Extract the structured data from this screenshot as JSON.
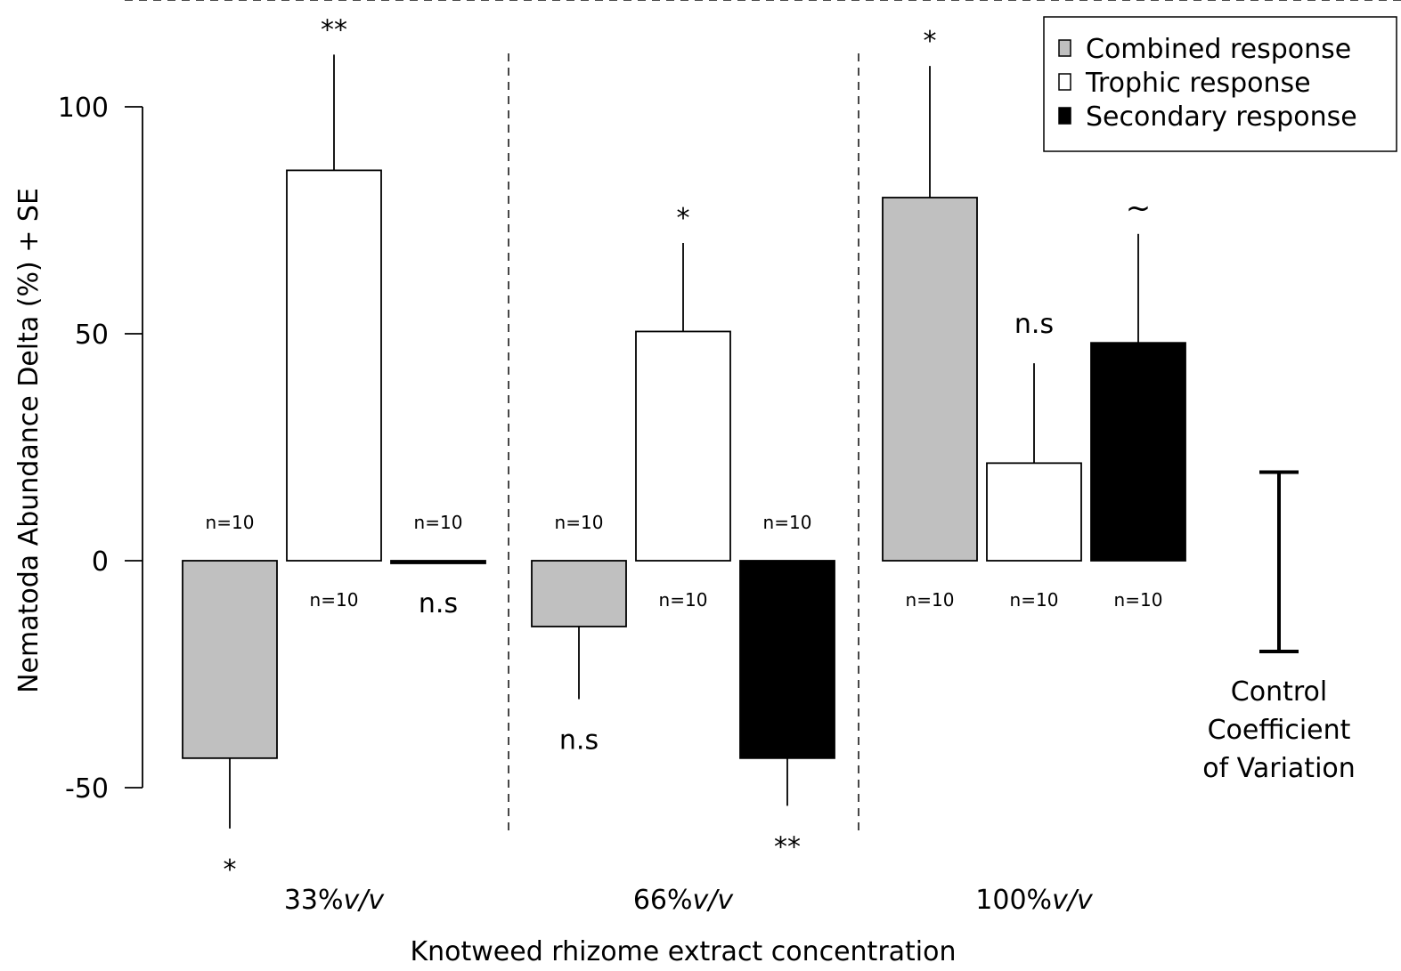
{
  "chart_data": {
    "type": "bar",
    "title": "",
    "xlabel": "Knotweed rhizome extract concentration",
    "ylabel": "Nematoda Abundance Delta (%) + SE",
    "ylim": [
      -60,
      100
    ],
    "yticks": [
      -50,
      0,
      50,
      100
    ],
    "grid": false,
    "legend_position": "top-right",
    "categories": [
      {
        "value": "33%",
        "unit": "v/v"
      },
      {
        "value": "66%",
        "unit": "v/v"
      },
      {
        "value": "100%",
        "unit": "v/v"
      }
    ],
    "series": [
      {
        "name": "Combined response",
        "color": "#c0c0c0",
        "values": [
          -43.5,
          -14.5,
          80
        ],
        "se": [
          15.5,
          16,
          29
        ],
        "n_labels": [
          "n=10",
          "n=10",
          "n=10"
        ],
        "significance": [
          "*",
          "n.s",
          "*"
        ]
      },
      {
        "name": "Trophic response",
        "color": "#ffffff",
        "values": [
          86,
          50.5,
          21.5
        ],
        "se": [
          25.5,
          19.5,
          22
        ],
        "n_labels": [
          "n=10",
          "n=10",
          "n=10"
        ],
        "significance": [
          "**",
          "*",
          "n.s"
        ]
      },
      {
        "name": "Secondary response",
        "color": "#000000",
        "values": [
          -0.5,
          -43.5,
          48
        ],
        "se": [
          0,
          10.5,
          24
        ],
        "n_labels": [
          "n=10",
          "n=10",
          "n=10"
        ],
        "significance": [
          "n.s",
          "**",
          "~"
        ]
      }
    ],
    "control": {
      "range": [
        -20,
        19.5
      ],
      "label_lines": [
        "Control",
        "Coefficient",
        "of Variation"
      ]
    }
  }
}
